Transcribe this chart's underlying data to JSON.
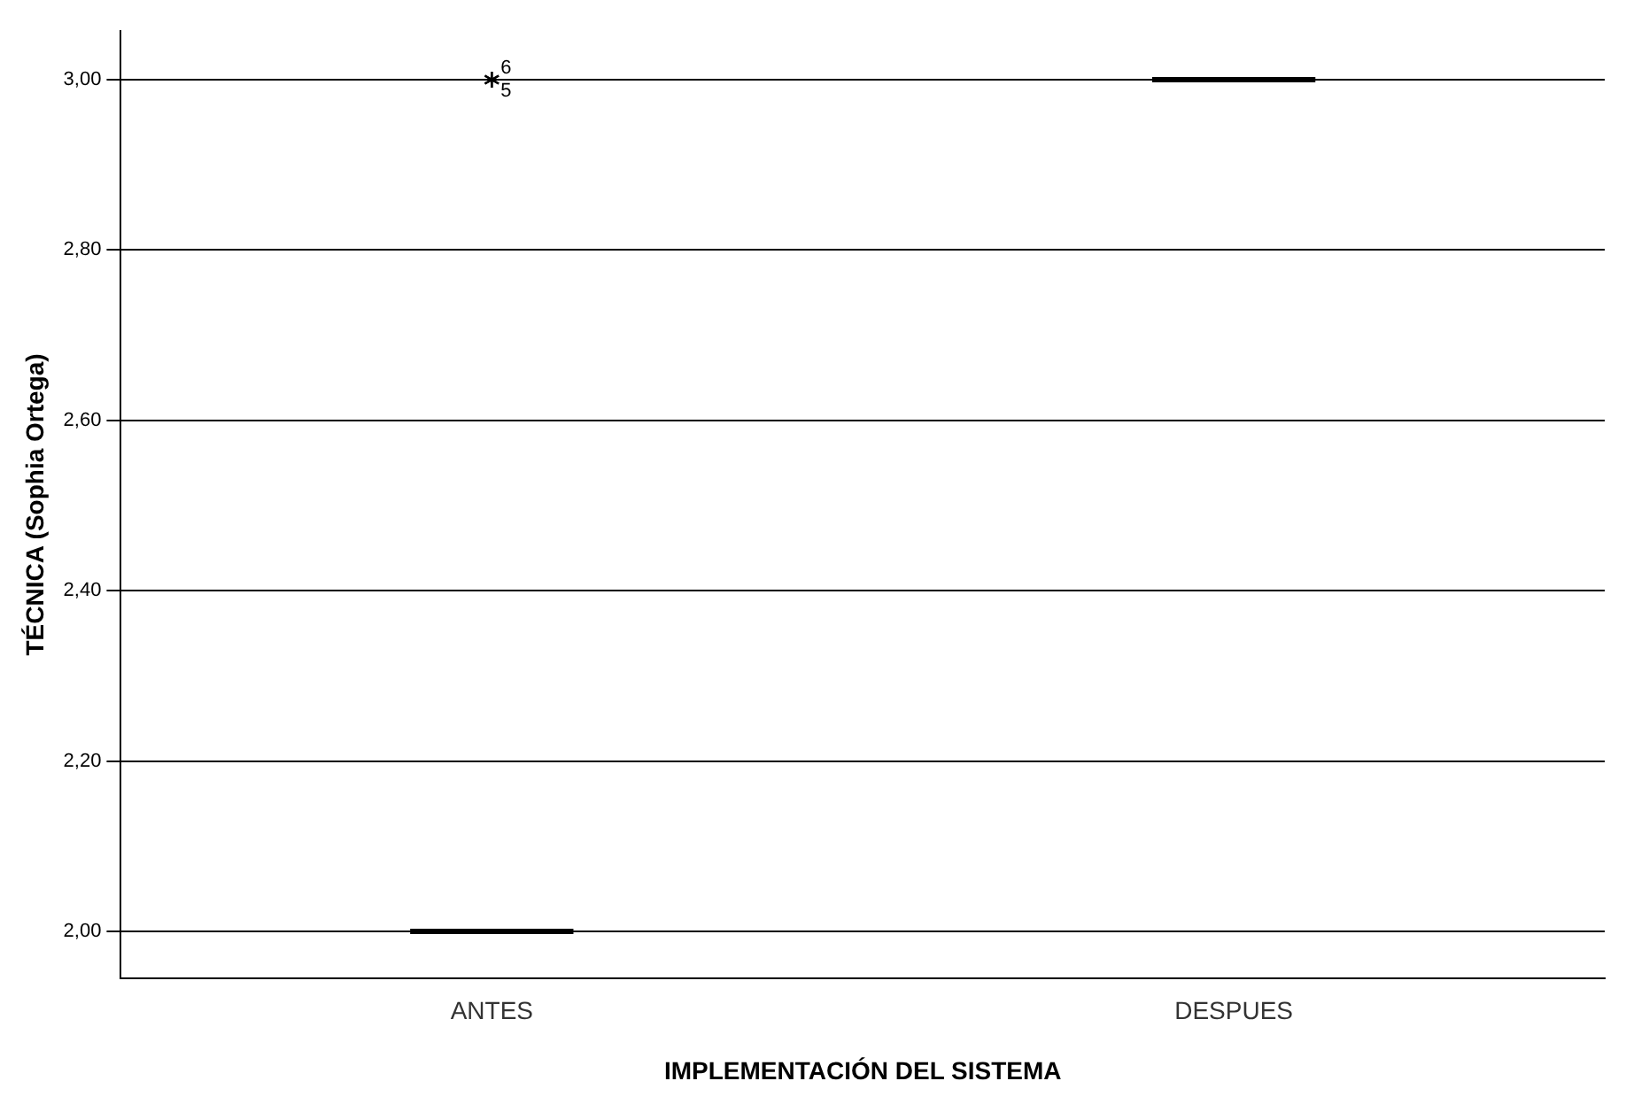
{
  "chart_data": {
    "type": "box",
    "xlabel": "IMPLEMENTACIÓN DEL SISTEMA",
    "ylabel": "TÉCNICA (Sophia Ortega)",
    "categories": [
      "ANTES",
      "DESPUES"
    ],
    "boxes": [
      {
        "low": 2,
        "q1": 2,
        "median": 2,
        "q3": 2,
        "high": 2,
        "outliers": [
          3,
          3
        ]
      },
      {
        "low": 3,
        "q1": 3,
        "median": 3,
        "q3": 3,
        "high": 3
      }
    ],
    "ylim": [
      1.945,
      3.057
    ],
    "yticks": [
      {
        "value": 2,
        "label": "2,00"
      },
      {
        "value": 2.2,
        "label": "2,20"
      },
      {
        "value": 2.4,
        "label": "2,40"
      },
      {
        "value": 2.6,
        "label": "2,60"
      },
      {
        "value": 2.8,
        "label": "2,80"
      },
      {
        "value": 3,
        "label": "3,00"
      }
    ],
    "grid": "y",
    "marker": "star",
    "color": "#000000",
    "annotations": [
      "6",
      "5"
    ]
  }
}
